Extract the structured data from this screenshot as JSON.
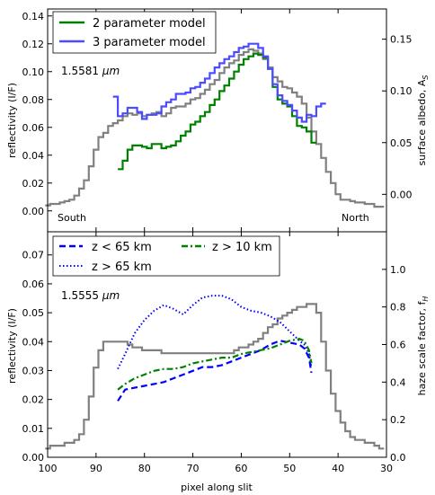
{
  "chart_data": [
    {
      "type": "line",
      "xlabel": "",
      "ylabel": "reflectivity (I/F)",
      "y2label": "surface albedo, A",
      "y2label_sub": "S",
      "xlim": [
        100,
        30
      ],
      "ylim": [
        -0.015,
        0.145
      ],
      "y2lim": [
        -0.0362,
        0.1792
      ],
      "x_reversed": true,
      "x_ticks": [
        100,
        90,
        80,
        70,
        60,
        50,
        40,
        30
      ],
      "y_ticks": [
        "0.00",
        "0.02",
        "0.04",
        "0.06",
        "0.08",
        "0.10",
        "0.12",
        "0.14"
      ],
      "y_tick_values": [
        0.0,
        0.02,
        0.04,
        0.06,
        0.08,
        0.1,
        0.12,
        0.14
      ],
      "y2_ticks": [
        "0.00",
        "0.05",
        "0.10",
        "0.15"
      ],
      "y2_tick_values": [
        0.0,
        0.05,
        0.1,
        0.15
      ],
      "annotation": "1.5581 ",
      "annotation_unit": "μm",
      "south_label": "South",
      "north_label": "North",
      "legend_position": "top-left",
      "series": [
        {
          "key": "obs",
          "color": "#808080",
          "style": "steps",
          "x": [
            100,
            99,
            98,
            97,
            96,
            95,
            94,
            93,
            92,
            91,
            90,
            89,
            88,
            87,
            86,
            85,
            84,
            83,
            82,
            81,
            80,
            79,
            78,
            77,
            76,
            75,
            74,
            73,
            72,
            71,
            70,
            69,
            68,
            67,
            66,
            65,
            64,
            63,
            62,
            61,
            60,
            59,
            58,
            57,
            56,
            55,
            54,
            53,
            52,
            51,
            50,
            49,
            48,
            47,
            46,
            45,
            44,
            43,
            42,
            41,
            40,
            39,
            38,
            37,
            36,
            35,
            34,
            33,
            32,
            31
          ],
          "values": [
            0.004,
            0.005,
            0.005,
            0.006,
            0.007,
            0.008,
            0.011,
            0.016,
            0.022,
            0.032,
            0.044,
            0.053,
            0.056,
            0.061,
            0.063,
            0.065,
            0.068,
            0.07,
            0.069,
            0.07,
            0.068,
            0.069,
            0.07,
            0.071,
            0.068,
            0.07,
            0.074,
            0.075,
            0.075,
            0.077,
            0.08,
            0.081,
            0.084,
            0.087,
            0.091,
            0.094,
            0.099,
            0.103,
            0.106,
            0.108,
            0.112,
            0.114,
            0.116,
            0.115,
            0.113,
            0.109,
            0.103,
            0.096,
            0.093,
            0.089,
            0.088,
            0.085,
            0.082,
            0.077,
            0.067,
            0.057,
            0.048,
            0.038,
            0.028,
            0.02,
            0.012,
            0.008,
            0.008,
            0.007,
            0.006,
            0.006,
            0.005,
            0.005,
            0.003,
            0.003
          ]
        },
        {
          "key": "m2",
          "name": "2 parameter model",
          "color": "#008000",
          "style": "steps",
          "x": [
            85,
            84,
            83,
            82,
            81,
            80,
            79,
            78,
            77,
            76,
            75,
            74,
            73,
            72,
            71,
            70,
            69,
            68,
            67,
            66,
            65,
            64,
            63,
            62,
            61,
            60,
            59,
            58,
            57,
            56,
            55,
            54,
            53,
            52,
            51,
            50,
            49,
            48,
            47,
            46,
            45
          ],
          "values": [
            0.03,
            0.036,
            0.044,
            0.047,
            0.047,
            0.046,
            0.045,
            0.048,
            0.048,
            0.045,
            0.046,
            0.047,
            0.05,
            0.054,
            0.057,
            0.062,
            0.064,
            0.068,
            0.071,
            0.076,
            0.08,
            0.086,
            0.09,
            0.095,
            0.1,
            0.105,
            0.109,
            0.111,
            0.113,
            0.112,
            0.11,
            0.102,
            0.089,
            0.08,
            0.077,
            0.075,
            0.068,
            0.061,
            0.06,
            0.057,
            0.049
          ]
        },
        {
          "key": "m3",
          "name": "3 parameter model",
          "color": "#4b4bff",
          "style": "steps",
          "x": [
            86,
            85,
            84,
            83,
            82,
            81,
            80,
            79,
            78,
            77,
            76,
            75,
            74,
            73,
            72,
            71,
            70,
            69,
            68,
            67,
            66,
            65,
            64,
            63,
            62,
            61,
            60,
            59,
            58,
            57,
            56,
            55,
            54,
            53,
            52,
            51,
            50,
            49,
            48,
            47,
            46,
            45,
            44,
            43
          ],
          "values": [
            0.082,
            0.068,
            0.07,
            0.074,
            0.074,
            0.071,
            0.066,
            0.069,
            0.069,
            0.07,
            0.075,
            0.078,
            0.08,
            0.084,
            0.084,
            0.085,
            0.088,
            0.089,
            0.092,
            0.095,
            0.099,
            0.103,
            0.106,
            0.109,
            0.111,
            0.114,
            0.117,
            0.118,
            0.12,
            0.12,
            0.117,
            0.111,
            0.102,
            0.091,
            0.083,
            0.079,
            0.076,
            0.072,
            0.067,
            0.064,
            0.069,
            0.068,
            0.075,
            0.077
          ]
        }
      ]
    },
    {
      "type": "line",
      "xlabel": "pixel along slit",
      "ylabel": "reflectivity (I/F)",
      "y2label": "haze scale factor, f",
      "y2label_sub": "H",
      "xlim": [
        100,
        30
      ],
      "ylim": [
        0.0,
        0.078
      ],
      "y2lim": [
        0.0,
        1.2
      ],
      "x_reversed": true,
      "x_ticks": [
        100,
        90,
        80,
        70,
        60,
        50,
        40,
        30
      ],
      "y_ticks": [
        "0.00",
        "0.01",
        "0.02",
        "0.03",
        "0.04",
        "0.05",
        "0.06",
        "0.07"
      ],
      "y_tick_values": [
        0.0,
        0.01,
        0.02,
        0.03,
        0.04,
        0.05,
        0.06,
        0.07
      ],
      "y2_ticks": [
        "0.0",
        "0.2",
        "0.4",
        "0.6",
        "0.8",
        "1.0"
      ],
      "y2_tick_values": [
        0.0,
        0.2,
        0.4,
        0.6,
        0.8,
        1.0
      ],
      "annotation": "1.5555 ",
      "annotation_unit": "μm",
      "legend_position": "top",
      "series": [
        {
          "key": "obs",
          "color": "#808080",
          "style": "steps",
          "x": [
            100,
            99,
            98,
            97,
            96,
            95,
            94,
            93,
            92,
            91,
            90,
            89,
            88,
            87,
            86,
            85,
            84,
            83,
            82,
            81,
            80,
            79,
            78,
            77,
            76,
            75,
            74,
            73,
            72,
            71,
            70,
            69,
            68,
            67,
            66,
            65,
            64,
            63,
            62,
            61,
            60,
            59,
            58,
            57,
            56,
            55,
            54,
            53,
            52,
            51,
            50,
            49,
            48,
            47,
            46,
            45,
            44,
            43,
            42,
            41,
            40,
            39,
            38,
            37,
            36,
            35,
            34,
            33,
            32,
            31
          ],
          "values": [
            0.003,
            0.004,
            0.004,
            0.004,
            0.005,
            0.005,
            0.006,
            0.008,
            0.013,
            0.021,
            0.031,
            0.037,
            0.04,
            0.04,
            0.04,
            0.04,
            0.04,
            0.039,
            0.038,
            0.038,
            0.037,
            0.037,
            0.037,
            0.037,
            0.036,
            0.036,
            0.036,
            0.036,
            0.036,
            0.036,
            0.036,
            0.036,
            0.036,
            0.036,
            0.036,
            0.036,
            0.036,
            0.036,
            0.036,
            0.037,
            0.038,
            0.038,
            0.039,
            0.04,
            0.041,
            0.043,
            0.045,
            0.046,
            0.048,
            0.049,
            0.05,
            0.051,
            0.052,
            0.052,
            0.053,
            0.053,
            0.05,
            0.04,
            0.03,
            0.022,
            0.016,
            0.012,
            0.009,
            0.007,
            0.006,
            0.006,
            0.005,
            0.005,
            0.004,
            0.003
          ]
        },
        {
          "key": "lt65",
          "name": "z < 65 km",
          "color": "#0000ff",
          "style": "dashed",
          "x": [
            85.5,
            84,
            82,
            80,
            78,
            76,
            74,
            72,
            70,
            68,
            66,
            64,
            62,
            60,
            58,
            56,
            54,
            52,
            50,
            48,
            47,
            46,
            45.5
          ],
          "y2": [
            0.3,
            0.36,
            0.37,
            0.38,
            0.39,
            0.4,
            0.42,
            0.44,
            0.46,
            0.48,
            0.48,
            0.49,
            0.51,
            0.53,
            0.55,
            0.57,
            0.6,
            0.62,
            0.61,
            0.6,
            0.58,
            0.53,
            0.45
          ]
        },
        {
          "key": "gt65",
          "name": "z > 65 km",
          "color": "#0000ff",
          "style": "dotted",
          "x": [
            85.5,
            84,
            82,
            80,
            78,
            76,
            74,
            72,
            70,
            68,
            66,
            64,
            62,
            60,
            58,
            56,
            54,
            52,
            50,
            48,
            47,
            46,
            45.5
          ],
          "y2": [
            0.47,
            0.55,
            0.66,
            0.73,
            0.78,
            0.81,
            0.79,
            0.76,
            0.81,
            0.85,
            0.86,
            0.86,
            0.84,
            0.8,
            0.78,
            0.77,
            0.75,
            0.72,
            0.67,
            0.62,
            0.6,
            0.55,
            0.48
          ]
        },
        {
          "key": "gt10",
          "name": "z > 10 km",
          "color": "#008000",
          "style": "dashdot",
          "x": [
            85.5,
            84,
            82,
            80,
            78,
            76,
            74,
            72,
            70,
            68,
            66,
            64,
            62,
            60,
            58,
            56,
            54,
            52,
            50,
            48,
            47,
            46,
            45.5
          ],
          "y2": [
            0.36,
            0.39,
            0.42,
            0.44,
            0.46,
            0.47,
            0.47,
            0.48,
            0.5,
            0.51,
            0.52,
            0.53,
            0.53,
            0.55,
            0.56,
            0.57,
            0.58,
            0.6,
            0.62,
            0.63,
            0.62,
            0.57,
            0.5
          ]
        }
      ]
    }
  ]
}
